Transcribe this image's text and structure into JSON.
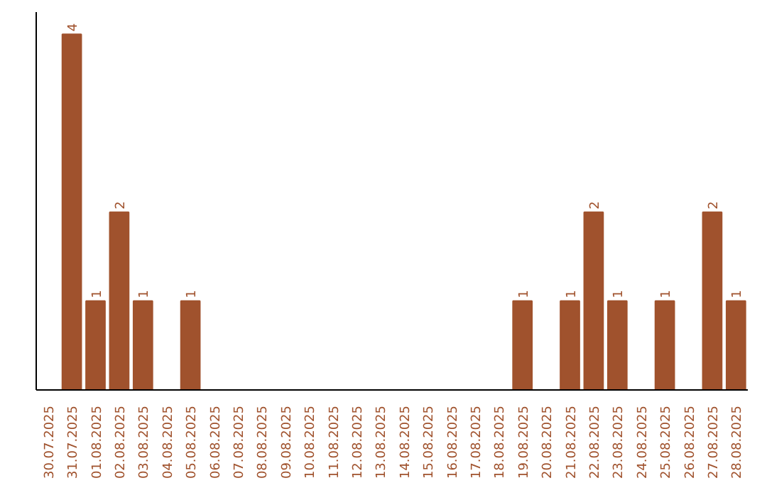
{
  "chart_data": {
    "type": "bar",
    "categories": [
      "30.07.2025",
      "31.07.2025",
      "01.08.2025",
      "02.08.2025",
      "03.08.2025",
      "04.08.2025",
      "05.08.2025",
      "06.08.2025",
      "07.08.2025",
      "08.08.2025",
      "09.08.2025",
      "10.08.2025",
      "11.08.2025",
      "12.08.2025",
      "13.08.2025",
      "14.08.2025",
      "15.08.2025",
      "16.08.2025",
      "17.08.2025",
      "18.08.2025",
      "19.08.2025",
      "20.08.2025",
      "21.08.2025",
      "22.08.2025",
      "23.08.2025",
      "24.08.2025",
      "25.08.2025",
      "26.08.2025",
      "27.08.2025",
      "28.08.2025"
    ],
    "values": [
      0,
      4,
      1,
      2,
      1,
      0,
      1,
      0,
      0,
      0,
      0,
      0,
      0,
      0,
      0,
      0,
      0,
      0,
      0,
      0,
      1,
      0,
      1,
      2,
      1,
      0,
      1,
      0,
      2,
      1
    ],
    "value_labels": [
      null,
      "4",
      "1",
      "2",
      "1",
      null,
      "1",
      null,
      null,
      null,
      null,
      null,
      null,
      null,
      null,
      null,
      null,
      null,
      null,
      null,
      "1",
      null,
      "1",
      "2",
      "1",
      null,
      "1",
      null,
      "2",
      "1"
    ],
    "color": "#a0522d",
    "ylim": [
      0,
      4.25
    ],
    "tick_labels": "x",
    "grid": false
  }
}
